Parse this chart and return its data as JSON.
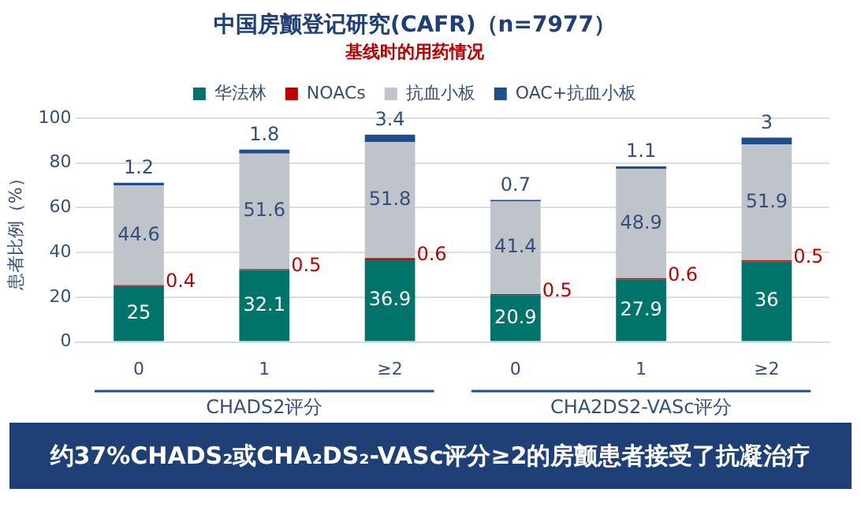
{
  "chart_data": {
    "type": "bar",
    "title": "中国房颤登记研究(CAFR)（n=7977）",
    "subtitle": "基线时的用药情况",
    "ylabel": "患者比例（%）",
    "categories": [
      "0",
      "1",
      "≥2",
      "0",
      "1",
      "≥2"
    ],
    "stacked": true,
    "series": [
      {
        "name": "华法林",
        "color": "#00736a",
        "values": [
          25,
          32.1,
          36.9,
          20.9,
          27.9,
          36
        ]
      },
      {
        "name": "NOACs",
        "color": "#c00000",
        "values": [
          0.4,
          0.5,
          0.6,
          0.5,
          0.6,
          0.5
        ]
      },
      {
        "name": "抗血小板",
        "color": "#bfc4ca",
        "values": [
          44.6,
          51.6,
          51.8,
          41.4,
          48.9,
          51.9
        ]
      },
      {
        "name": "OAC+抗血小板",
        "color": "#1f4e8c",
        "values": [
          1.2,
          1.8,
          3.4,
          0.7,
          1.1,
          3
        ]
      }
    ],
    "ylim": [
      0,
      100
    ],
    "yticks": [
      0,
      20,
      40,
      60,
      80,
      100
    ],
    "grid": "y",
    "legend": "top",
    "data_labels": true,
    "annotations": [
      "CHADS2评分",
      "CHA2DS2-VASc评分",
      "约37%CHADS₂或CHA₂DS₂-VASc评分≥2的房颤患者接受了抗凝治疗"
    ]
  }
}
